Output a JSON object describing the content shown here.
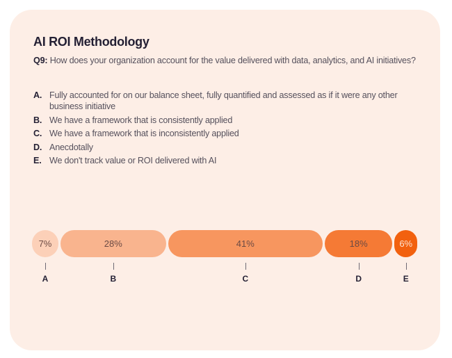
{
  "card": {
    "title": "AI ROI Methodology",
    "question_number": "Q9:",
    "question_text": "How does your organization account for the value delivered with data, analytics, and AI initiatives?",
    "background": "#fdeee6"
  },
  "options": [
    {
      "letter": "A.",
      "text": "Fully accounted for on our balance sheet, fully quantified and assessed as if it were any other business initiative"
    },
    {
      "letter": "B.",
      "text": "We have a framework that is consistently applied"
    },
    {
      "letter": "C.",
      "text": "We have a framework that is inconsistently applied"
    },
    {
      "letter": "D.",
      "text": "Anecdotally"
    },
    {
      "letter": "E.",
      "text": "We don't track value or ROI delivered with AI"
    }
  ],
  "chart_data": {
    "type": "bar",
    "orientation": "horizontal-stacked-pills",
    "title": "AI ROI Methodology",
    "categories": [
      "A",
      "B",
      "C",
      "D",
      "E"
    ],
    "values": [
      7,
      28,
      41,
      18,
      6
    ],
    "value_labels": [
      "7%",
      "28%",
      "41%",
      "18%",
      "6%"
    ],
    "unit": "%",
    "colors": [
      "#fcd0b8",
      "#f9b48e",
      "#f7965f",
      "#f57a35",
      "#f2610f"
    ],
    "label_colors": [
      "#6b4a44",
      "#6b4a44",
      "#6b4a44",
      "#6b4a44",
      "#fde3d2"
    ],
    "xlabel": "",
    "ylabel": "",
    "grid": false,
    "legend": "none (category letters under bars)"
  }
}
